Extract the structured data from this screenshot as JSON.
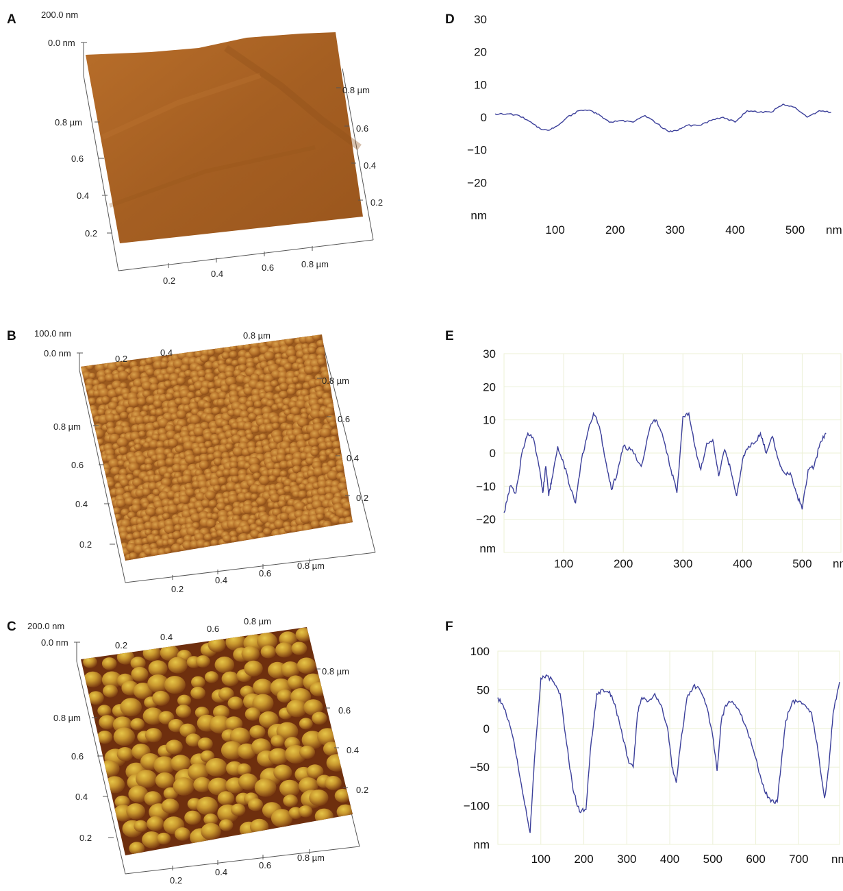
{
  "afm_panels": [
    {
      "label": "A",
      "z_max_label": "200.0 nm",
      "z_min_label": "0.0 nm",
      "left_axis_ticks": [
        "0.8 µm",
        "0.6",
        "0.4",
        "0.2"
      ],
      "right_axis_ticks": [
        "0.8 µm",
        "0.6",
        "0.4",
        "0.2"
      ],
      "bottom_axis_ticks": [
        "0.2",
        "0.4",
        "0.6",
        "0.8 µm"
      ],
      "top_axis_ticks": [],
      "surface": "smooth"
    },
    {
      "label": "B",
      "z_max_label": "100.0 nm",
      "z_min_label": "0.0 nm",
      "left_axis_ticks": [
        "0.8 µm",
        "0.6",
        "0.4",
        "0.2"
      ],
      "right_axis_ticks": [
        "0.8 µm",
        "0.6",
        "0.4",
        "0.2"
      ],
      "bottom_axis_ticks": [
        "0.2",
        "0.4",
        "0.6",
        "0.8 µm"
      ],
      "top_axis_ticks": [
        "0.2",
        "0.4",
        "0.8 µm"
      ],
      "surface": "fine-grain"
    },
    {
      "label": "C",
      "z_max_label": "200.0 nm",
      "z_min_label": "0.0 nm",
      "left_axis_ticks": [
        "0.8 µm",
        "0.6",
        "0.4",
        "0.2"
      ],
      "right_axis_ticks": [
        "0.8 µm",
        "0.6",
        "0.4",
        "0.2"
      ],
      "bottom_axis_ticks": [
        "0.2",
        "0.4",
        "0.6",
        "0.8 µm"
      ],
      "top_axis_ticks": [
        "0.2",
        "0.4",
        "0.6",
        "0.8 µm"
      ],
      "surface": "coarse-grain"
    }
  ],
  "chart_data": [
    {
      "type": "line",
      "label": "D",
      "xlabel": "nm",
      "ylabel": "nm",
      "xticks": [
        100,
        200,
        300,
        400,
        500
      ],
      "yticks": [
        30,
        20,
        10,
        0,
        -10,
        -20
      ],
      "xlim": [
        0,
        565
      ],
      "ylim": [
        -30,
        30
      ],
      "grid": false,
      "line_color": "#3b3f9a",
      "series": [
        {
          "x": [
            0,
            20,
            40,
            60,
            75,
            90,
            105,
            120,
            140,
            160,
            175,
            190,
            210,
            230,
            250,
            270,
            290,
            305,
            320,
            340,
            360,
            380,
            400,
            420,
            440,
            460,
            480,
            500,
            520,
            540,
            560
          ],
          "y": [
            1,
            1,
            0.5,
            -1.5,
            -3.5,
            -4,
            -2.5,
            0,
            2,
            2,
            0.5,
            -1.5,
            -1,
            -1.5,
            0.5,
            -2,
            -4.5,
            -4,
            -2.5,
            -2.5,
            -1,
            0,
            -1.5,
            2,
            1.5,
            1.5,
            4,
            3,
            0,
            2,
            1.5
          ]
        }
      ]
    },
    {
      "type": "line",
      "label": "E",
      "xlabel": "nm",
      "ylabel": "nm",
      "xticks": [
        100,
        200,
        300,
        400,
        500
      ],
      "yticks": [
        30,
        20,
        10,
        0,
        -10,
        -20
      ],
      "xlim": [
        0,
        565
      ],
      "ylim": [
        -30,
        30
      ],
      "grid": true,
      "line_color": "#3b3f9a",
      "series": [
        {
          "x": [
            0,
            10,
            20,
            30,
            40,
            50,
            60,
            65,
            70,
            75,
            80,
            90,
            100,
            110,
            120,
            130,
            140,
            150,
            160,
            170,
            180,
            190,
            200,
            215,
            230,
            245,
            255,
            265,
            280,
            290,
            300,
            310,
            320,
            330,
            340,
            350,
            360,
            370,
            380,
            390,
            400,
            410,
            420,
            430,
            440,
            450,
            460,
            470,
            480,
            490,
            500,
            510,
            520,
            530,
            540
          ],
          "y": [
            -18,
            -10,
            -12,
            0,
            6,
            4,
            -5,
            -12,
            -4,
            -13,
            -8,
            2,
            -3,
            -10,
            -15,
            -2,
            6,
            12,
            8,
            -2,
            -11,
            -6,
            2,
            1,
            -4,
            8,
            10,
            6,
            -5,
            -12,
            11,
            12,
            2,
            -5,
            3,
            4,
            -7,
            1,
            -5,
            -13,
            -2,
            2,
            3,
            6,
            0,
            5,
            -2,
            -6,
            -6,
            -12,
            -17,
            -5,
            -4,
            3,
            6
          ]
        }
      ]
    },
    {
      "type": "line",
      "label": "F",
      "xlabel": "nm",
      "ylabel": "nm",
      "xticks": [
        100,
        200,
        300,
        400,
        500,
        600,
        700
      ],
      "yticks": [
        100,
        50,
        0,
        -50,
        -100
      ],
      "xlim": [
        0,
        795
      ],
      "ylim": [
        -150,
        100
      ],
      "grid": true,
      "line_color": "#3b3f9a",
      "series": [
        {
          "x": [
            0,
            15,
            30,
            45,
            60,
            75,
            85,
            100,
            115,
            130,
            145,
            160,
            175,
            190,
            205,
            215,
            230,
            245,
            260,
            275,
            290,
            305,
            315,
            325,
            335,
            350,
            365,
            380,
            395,
            405,
            415,
            425,
            440,
            455,
            470,
            485,
            500,
            510,
            520,
            530,
            545,
            560,
            575,
            590,
            605,
            620,
            635,
            650,
            660,
            670,
            685,
            700,
            715,
            730,
            745,
            760,
            770,
            780,
            795
          ],
          "y": [
            40,
            25,
            0,
            -40,
            -90,
            -135,
            -40,
            65,
            68,
            60,
            45,
            -20,
            -80,
            -108,
            -105,
            -30,
            45,
            50,
            48,
            25,
            -10,
            -45,
            -50,
            20,
            40,
            35,
            45,
            30,
            0,
            -50,
            -70,
            -20,
            40,
            55,
            50,
            30,
            -10,
            -55,
            10,
            30,
            35,
            25,
            5,
            -20,
            -50,
            -80,
            -95,
            -95,
            -40,
            10,
            35,
            35,
            30,
            20,
            -30,
            -90,
            -50,
            20,
            60
          ]
        }
      ]
    }
  ]
}
